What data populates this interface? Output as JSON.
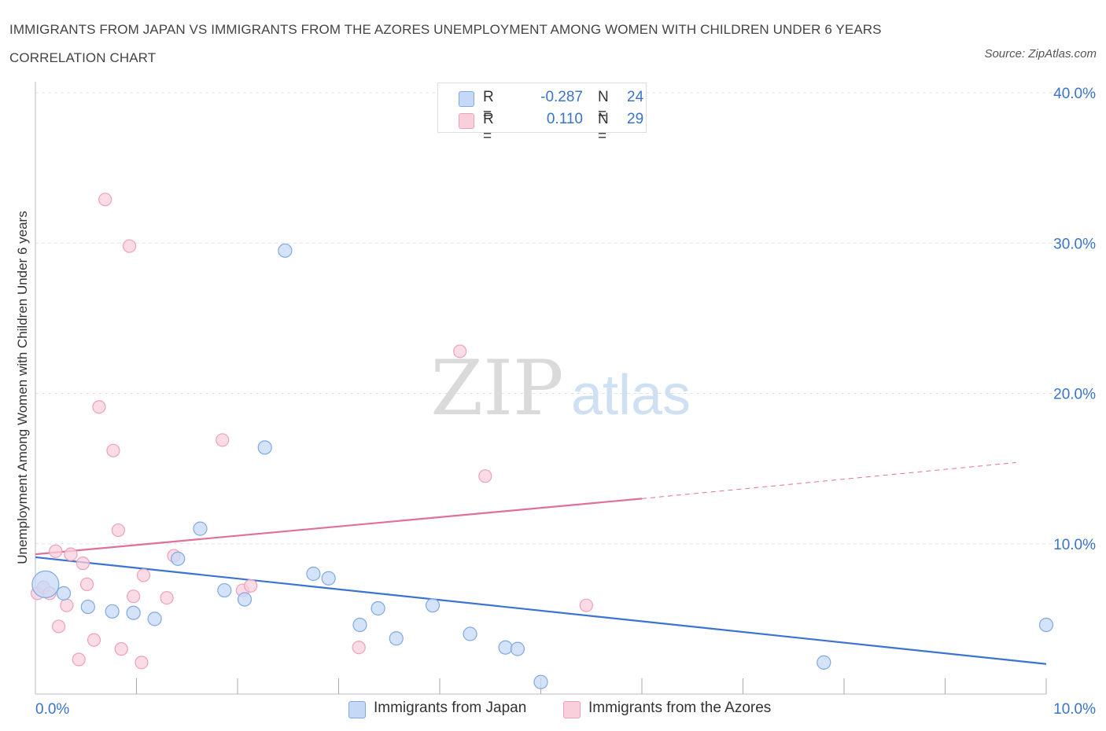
{
  "header": {
    "title": "IMMIGRANTS FROM JAPAN VS IMMIGRANTS FROM THE AZORES UNEMPLOYMENT AMONG WOMEN WITH CHILDREN UNDER 6 YEARS CORRELATION CHART",
    "source": "Source: ZipAtlas.com"
  },
  "watermark": {
    "zip": "ZIP",
    "atlas": "atlas"
  },
  "legend": {
    "japan": {
      "r_label": "R =",
      "r_value": "-0.287",
      "n_label": "N =",
      "n_value": "24"
    },
    "azores": {
      "r_label": "R =",
      "r_value": "0.110",
      "n_label": "N =",
      "n_value": "29"
    }
  },
  "bottom_legend": {
    "japan": "Immigrants from Japan",
    "azores": "Immigrants from the Azores"
  },
  "colors": {
    "japan_fill": "#c5d9f6",
    "japan_stroke": "#7fa8e4",
    "japan_line": "#3a74d0",
    "azores_fill": "#f9cfdc",
    "azores_stroke": "#eea1b9",
    "azores_line": "#e0709a",
    "tick_label": "#3a74c9",
    "grid": "#dde2ea"
  },
  "chart_data": {
    "type": "scatter",
    "title": "IMMIGRANTS FROM JAPAN VS IMMIGRANTS FROM THE AZORES UNEMPLOYMENT AMONG WOMEN WITH CHILDREN UNDER 6 YEARS CORRELATION CHART",
    "xlabel": "",
    "ylabel": "Unemployment Among Women with Children Under 6 years",
    "xlim": [
      0,
      10
    ],
    "ylim": [
      0,
      40
    ],
    "x_tick_labels": [
      "0.0%",
      "10.0%"
    ],
    "y_ticks": [
      10,
      20,
      30,
      40
    ],
    "y_tick_labels": [
      "10.0%",
      "20.0%",
      "30.0%",
      "40.0%"
    ],
    "grid": true,
    "series": [
      {
        "name": "Immigrants from Japan",
        "points": [
          {
            "x": 0.1,
            "y": 7.3,
            "big": true
          },
          {
            "x": 0.28,
            "y": 6.7
          },
          {
            "x": 0.52,
            "y": 5.8
          },
          {
            "x": 0.76,
            "y": 5.5
          },
          {
            "x": 0.97,
            "y": 5.4
          },
          {
            "x": 1.18,
            "y": 5.0
          },
          {
            "x": 1.41,
            "y": 9.0
          },
          {
            "x": 1.63,
            "y": 11.0
          },
          {
            "x": 1.87,
            "y": 6.9
          },
          {
            "x": 2.07,
            "y": 6.3
          },
          {
            "x": 2.27,
            "y": 16.4
          },
          {
            "x": 2.47,
            "y": 29.5
          },
          {
            "x": 2.75,
            "y": 8.0
          },
          {
            "x": 2.9,
            "y": 7.7
          },
          {
            "x": 3.21,
            "y": 4.6
          },
          {
            "x": 3.39,
            "y": 5.7
          },
          {
            "x": 3.57,
            "y": 3.7
          },
          {
            "x": 3.93,
            "y": 5.9
          },
          {
            "x": 4.3,
            "y": 4.0
          },
          {
            "x": 4.65,
            "y": 3.1
          },
          {
            "x": 4.77,
            "y": 3.0
          },
          {
            "x": 5.0,
            "y": 0.8
          },
          {
            "x": 7.8,
            "y": 2.1
          },
          {
            "x": 10.0,
            "y": 4.6
          }
        ]
      },
      {
        "name": "Immigrants from the Azores",
        "points": [
          {
            "x": 0.02,
            "y": 6.7
          },
          {
            "x": 0.08,
            "y": 7.1
          },
          {
            "x": 0.14,
            "y": 6.7
          },
          {
            "x": 0.2,
            "y": 9.5
          },
          {
            "x": 0.23,
            "y": 4.5
          },
          {
            "x": 0.31,
            "y": 5.9
          },
          {
            "x": 0.35,
            "y": 9.3
          },
          {
            "x": 0.43,
            "y": 2.3
          },
          {
            "x": 0.47,
            "y": 8.7
          },
          {
            "x": 0.51,
            "y": 7.3
          },
          {
            "x": 0.58,
            "y": 3.6
          },
          {
            "x": 0.63,
            "y": 19.1
          },
          {
            "x": 0.69,
            "y": 32.9
          },
          {
            "x": 0.77,
            "y": 16.2
          },
          {
            "x": 0.82,
            "y": 10.9
          },
          {
            "x": 0.85,
            "y": 3.0
          },
          {
            "x": 0.93,
            "y": 29.8
          },
          {
            "x": 0.97,
            "y": 6.5
          },
          {
            "x": 1.05,
            "y": 2.1
          },
          {
            "x": 1.07,
            "y": 7.9
          },
          {
            "x": 1.3,
            "y": 6.4
          },
          {
            "x": 1.37,
            "y": 9.2
          },
          {
            "x": 1.85,
            "y": 16.9
          },
          {
            "x": 2.05,
            "y": 6.9
          },
          {
            "x": 2.13,
            "y": 7.2
          },
          {
            "x": 3.2,
            "y": 3.1
          },
          {
            "x": 4.2,
            "y": 22.8
          },
          {
            "x": 4.45,
            "y": 14.5
          },
          {
            "x": 5.45,
            "y": 5.9
          }
        ]
      }
    ],
    "trendlines": [
      {
        "series": "Immigrants from Japan",
        "x": [
          0,
          10
        ],
        "y": [
          9.1,
          2.0
        ],
        "style": "solid"
      },
      {
        "series": "Immigrants from the Azores",
        "solid_x": [
          0,
          6.0
        ],
        "solid_y": [
          9.3,
          13.0
        ],
        "dashed_x": [
          6.0,
          9.7
        ],
        "dashed_y": [
          13.0,
          15.4
        ]
      }
    ]
  }
}
